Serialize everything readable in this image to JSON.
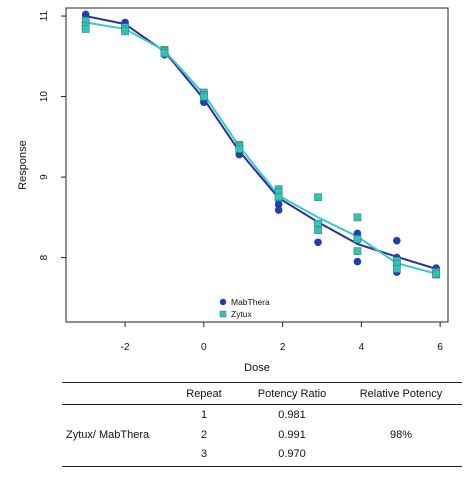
{
  "chart_data": {
    "type": "scatter",
    "xlabel": "Dose",
    "ylabel": "Response",
    "xlim": [
      -3.5,
      6.2
    ],
    "ylim": [
      7.2,
      11.1
    ],
    "x_ticks": [
      "-2",
      "0",
      "2",
      "4",
      "6"
    ],
    "y_ticks": [
      "8",
      "9",
      "10",
      "11"
    ],
    "grid": false,
    "legend_position": "bottom-center",
    "series": [
      {
        "name": "MabThera",
        "color": "#1f3fb0",
        "line_color": "#2b2f9e",
        "marker": "circle",
        "points": [
          [
            -3,
            11.02
          ],
          [
            -3,
            10.97
          ],
          [
            -3,
            10.92
          ],
          [
            -2,
            10.92
          ],
          [
            -2,
            10.87
          ],
          [
            -2,
            10.82
          ],
          [
            -1,
            10.57
          ],
          [
            -1,
            10.54
          ],
          [
            -1,
            10.52
          ],
          [
            0,
            10.02
          ],
          [
            0,
            9.97
          ],
          [
            0,
            9.93
          ],
          [
            0.9,
            9.34
          ],
          [
            0.9,
            9.31
          ],
          [
            0.9,
            9.28
          ],
          [
            1.9,
            8.72
          ],
          [
            1.9,
            8.66
          ],
          [
            1.9,
            8.59
          ],
          [
            2.9,
            8.42
          ],
          [
            2.9,
            8.38
          ],
          [
            2.9,
            8.19
          ],
          [
            3.9,
            8.3
          ],
          [
            3.9,
            8.22
          ],
          [
            3.9,
            7.95
          ],
          [
            4.9,
            8.21
          ],
          [
            4.9,
            8.0
          ],
          [
            4.9,
            7.82
          ],
          [
            5.9,
            7.87
          ],
          [
            5.9,
            7.84
          ],
          [
            5.9,
            7.82
          ]
        ],
        "fit": [
          [
            -3,
            11.0
          ],
          [
            -2,
            10.9
          ],
          [
            -1,
            10.56
          ],
          [
            0,
            9.97
          ],
          [
            0.9,
            9.32
          ],
          [
            1.9,
            8.74
          ],
          [
            2.9,
            8.44
          ],
          [
            3.9,
            8.17
          ],
          [
            4.9,
            8.01
          ],
          [
            5.9,
            7.86
          ]
        ]
      },
      {
        "name": "Zytux",
        "color": "#2ec4b6",
        "line_color": "#38c9c9",
        "marker": "square",
        "points": [
          [
            -3,
            10.94
          ],
          [
            -3,
            10.88
          ],
          [
            -3,
            10.84
          ],
          [
            -2,
            10.86
          ],
          [
            -2,
            10.84
          ],
          [
            -2,
            10.81
          ],
          [
            -1,
            10.58
          ],
          [
            -1,
            10.56
          ],
          [
            -1,
            10.54
          ],
          [
            0,
            10.05
          ],
          [
            0,
            10.02
          ],
          [
            0,
            10.0
          ],
          [
            0.9,
            9.4
          ],
          [
            0.9,
            9.38
          ],
          [
            0.9,
            9.35
          ],
          [
            1.9,
            8.85
          ],
          [
            1.9,
            8.81
          ],
          [
            1.9,
            8.75
          ],
          [
            2.9,
            8.75
          ],
          [
            2.9,
            8.42
          ],
          [
            2.9,
            8.34
          ],
          [
            3.9,
            8.5
          ],
          [
            3.9,
            8.23
          ],
          [
            3.9,
            8.08
          ],
          [
            4.9,
            7.96
          ],
          [
            4.9,
            7.92
          ],
          [
            4.9,
            7.86
          ],
          [
            5.9,
            7.82
          ],
          [
            5.9,
            7.79
          ],
          [
            5.9,
            7.8
          ]
        ],
        "fit": [
          [
            -3,
            10.92
          ],
          [
            -2,
            10.84
          ],
          [
            -1,
            10.57
          ],
          [
            0,
            10.03
          ],
          [
            0.9,
            9.38
          ],
          [
            1.9,
            8.77
          ],
          [
            2.9,
            8.5
          ],
          [
            3.9,
            8.26
          ],
          [
            4.9,
            7.93
          ],
          [
            5.9,
            7.8
          ]
        ]
      }
    ]
  },
  "table": {
    "headers": {
      "repeat": "Repeat",
      "ratio": "Potency Ratio",
      "relative": "Relative Potency"
    },
    "group_label": "Zytux/ MabThera",
    "rows": [
      {
        "repeat": "1",
        "ratio": "0.981"
      },
      {
        "repeat": "2",
        "ratio": "0.991"
      },
      {
        "repeat": "3",
        "ratio": "0.970"
      }
    ],
    "relative_potency": "98%"
  }
}
